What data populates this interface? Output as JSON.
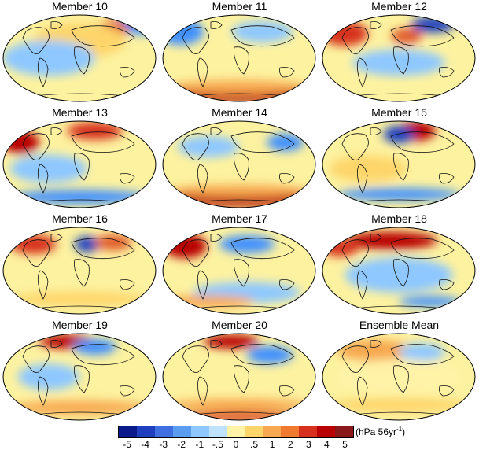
{
  "panels": [
    {
      "title": "Member 10",
      "lat_blobs": [
        [
          "#3f90ff",
          0.9,
          0.12,
          0.18,
          0.11
        ],
        [
          "#e05a2a",
          0.72,
          0.16,
          0.1,
          0.09
        ],
        [
          "#fdd56a",
          0.5,
          0.3,
          0.3,
          0.2
        ],
        [
          "#8ec8ff",
          0.3,
          0.5,
          0.3,
          0.2
        ]
      ]
    },
    {
      "title": "Member 11",
      "lat_blobs": [
        [
          "#3f90ff",
          0.12,
          0.2,
          0.15,
          0.15
        ],
        [
          "#b80000",
          0.5,
          0.93,
          0.5,
          0.08
        ],
        [
          "#f7a850",
          0.5,
          0.83,
          0.45,
          0.08
        ],
        [
          "#8ec8ff",
          0.65,
          0.2,
          0.2,
          0.12
        ]
      ]
    },
    {
      "title": "Member 12",
      "lat_blobs": [
        [
          "#d7301f",
          0.15,
          0.22,
          0.15,
          0.14
        ],
        [
          "#1f3fbf",
          0.72,
          0.12,
          0.14,
          0.09
        ],
        [
          "#e05a2a",
          0.55,
          0.25,
          0.1,
          0.09
        ],
        [
          "#8ec8ff",
          0.5,
          0.55,
          0.3,
          0.15
        ]
      ]
    },
    {
      "title": "Member 13",
      "lat_blobs": [
        [
          "#b80000",
          0.12,
          0.25,
          0.12,
          0.13
        ],
        [
          "#d7301f",
          0.6,
          0.12,
          0.18,
          0.1
        ],
        [
          "#3f90ff",
          0.5,
          0.87,
          0.45,
          0.08
        ],
        [
          "#8ec8ff",
          0.3,
          0.55,
          0.25,
          0.16
        ]
      ]
    },
    {
      "title": "Member 14",
      "lat_blobs": [
        [
          "#b80000",
          0.5,
          0.9,
          0.5,
          0.08
        ],
        [
          "#f7a850",
          0.5,
          0.8,
          0.45,
          0.07
        ],
        [
          "#8ec8ff",
          0.3,
          0.3,
          0.2,
          0.12
        ],
        [
          "#3f90ff",
          0.8,
          0.25,
          0.12,
          0.1
        ]
      ]
    },
    {
      "title": "Member 15",
      "lat_blobs": [
        [
          "#b80000",
          0.62,
          0.12,
          0.12,
          0.11
        ],
        [
          "#1f3fbf",
          0.5,
          0.16,
          0.1,
          0.1
        ],
        [
          "#3f90ff",
          0.5,
          0.84,
          0.4,
          0.07
        ],
        [
          "#fdd56a",
          0.3,
          0.55,
          0.25,
          0.15
        ]
      ]
    },
    {
      "title": "Member 16",
      "lat_blobs": [
        [
          "#d7301f",
          0.2,
          0.2,
          0.15,
          0.11
        ],
        [
          "#1f3fbf",
          0.55,
          0.2,
          0.08,
          0.09
        ],
        [
          "#e05a2a",
          0.72,
          0.18,
          0.12,
          0.09
        ],
        [
          "#fdd56a",
          0.5,
          0.82,
          0.45,
          0.08
        ]
      ]
    },
    {
      "title": "Member 17",
      "lat_blobs": [
        [
          "#b80000",
          0.15,
          0.22,
          0.14,
          0.14
        ],
        [
          "#3f90ff",
          0.55,
          0.2,
          0.18,
          0.1
        ],
        [
          "#8ec8ff",
          0.55,
          0.75,
          0.35,
          0.12
        ],
        [
          "#f7a850",
          0.3,
          0.85,
          0.3,
          0.07
        ]
      ]
    },
    {
      "title": "Member 18",
      "lat_blobs": [
        [
          "#b80000",
          0.45,
          0.16,
          0.3,
          0.1
        ],
        [
          "#d7301f",
          0.12,
          0.24,
          0.12,
          0.1
        ],
        [
          "#8ec8ff",
          0.5,
          0.55,
          0.35,
          0.2
        ],
        [
          "#3f90ff",
          0.7,
          0.85,
          0.2,
          0.06
        ]
      ]
    },
    {
      "title": "Member 19",
      "lat_blobs": [
        [
          "#b80000",
          0.42,
          0.1,
          0.18,
          0.08
        ],
        [
          "#3f90ff",
          0.6,
          0.16,
          0.14,
          0.09
        ],
        [
          "#f7a850",
          0.5,
          0.85,
          0.45,
          0.08
        ],
        [
          "#8ec8ff",
          0.3,
          0.5,
          0.2,
          0.15
        ]
      ]
    },
    {
      "title": "Member 20",
      "lat_blobs": [
        [
          "#b80000",
          0.45,
          0.1,
          0.18,
          0.08
        ],
        [
          "#d7301f",
          0.5,
          0.95,
          0.45,
          0.05
        ],
        [
          "#3f90ff",
          0.7,
          0.25,
          0.15,
          0.1
        ],
        [
          "#f7a850",
          0.5,
          0.82,
          0.45,
          0.07
        ]
      ]
    },
    {
      "title": "Ensemble Mean",
      "lat_blobs": [
        [
          "#f7a850",
          0.35,
          0.2,
          0.25,
          0.12
        ],
        [
          "#8ec8ff",
          0.65,
          0.22,
          0.15,
          0.1
        ],
        [
          "#fdd56a",
          0.5,
          0.82,
          0.45,
          0.08
        ],
        [
          "#fff3a8",
          0.5,
          0.5,
          0.4,
          0.2
        ]
      ]
    }
  ],
  "colorbar": {
    "colors": [
      "#0a1a8a",
      "#1f3fbf",
      "#3f6fe0",
      "#5a9cf0",
      "#8ec8ff",
      "#bfe3ff",
      "#fff3a8",
      "#fdd56a",
      "#f7a850",
      "#f07a30",
      "#d7301f",
      "#b80000",
      "#8a1a1a"
    ],
    "labels": [
      "-5",
      "-4",
      "-3",
      "-2",
      "-1",
      "-.5",
      "0",
      ".5",
      "1",
      "2",
      "3",
      "4",
      "5"
    ],
    "units_text": "(hPa 56yr",
    "units_exp": "-1",
    "units_close": ")"
  }
}
